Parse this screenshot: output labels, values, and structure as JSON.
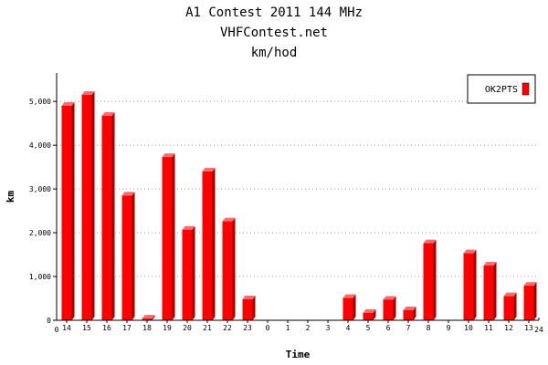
{
  "chart_data": {
    "type": "bar",
    "title": "A1 Contest 2011 144 MHz",
    "subtitle": "VHFContest.net",
    "subtitle2": "km/hod",
    "xlabel": "Time",
    "ylabel": "km",
    "categories": [
      "14",
      "15",
      "16",
      "17",
      "18",
      "19",
      "20",
      "21",
      "22",
      "23",
      "0",
      "1",
      "2",
      "3",
      "4",
      "5",
      "6",
      "7",
      "8",
      "9",
      "10",
      "11",
      "12",
      "13"
    ],
    "series": [
      {
        "name": "OK2PTS",
        "color": "#ff0000",
        "values": [
          4900,
          5150,
          4670,
          2850,
          40,
          3730,
          2070,
          3400,
          2260,
          480,
          0,
          0,
          0,
          0,
          510,
          170,
          470,
          230,
          1760,
          0,
          1530,
          1250,
          550,
          790
        ]
      }
    ],
    "y_ticks": [
      0,
      1000,
      2000,
      3000,
      4000,
      5000
    ],
    "y_tick_labels": [
      "0",
      "1,000",
      "2,000",
      "3,000",
      "4,000",
      "5,000"
    ],
    "x_edge_labels": [
      "0",
      "24"
    ],
    "ylim": [
      0,
      5650
    ],
    "grid": true,
    "legend_position": "top-right"
  }
}
